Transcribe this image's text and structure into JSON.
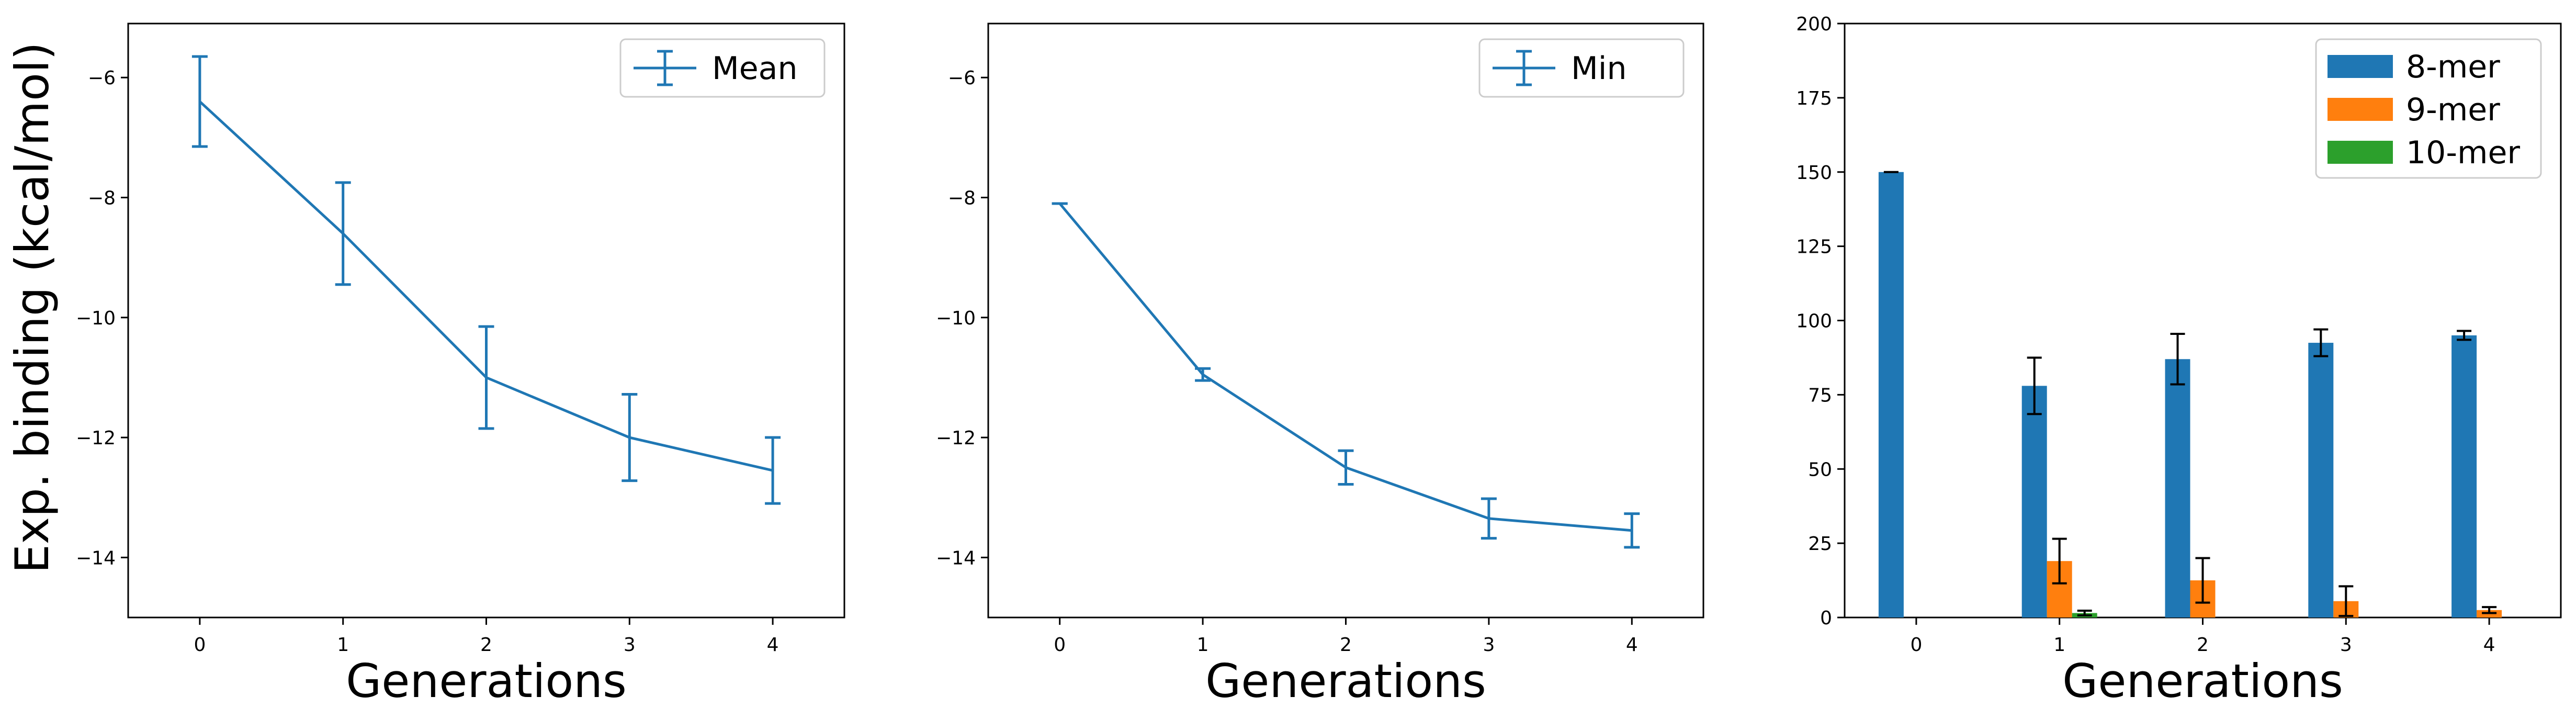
{
  "figure": {
    "ylabel": "Exp. binding (kcal/mol)"
  },
  "colors": {
    "blue": "#1f77b4",
    "orange": "#ff7f0e",
    "green": "#2ca02c",
    "errorbar_black": "#000000"
  },
  "chart_data": [
    {
      "type": "line",
      "panel": "left",
      "x": [
        0,
        1,
        2,
        3,
        4
      ],
      "xticks": [
        "0",
        "1",
        "2",
        "3",
        "4"
      ],
      "xlabel": "Generations",
      "ylabel": "Exp. binding (kcal/mol)",
      "xlim": [
        -0.5,
        4.5
      ],
      "ylim": [
        -15,
        -5.1
      ],
      "yticks": [
        -6,
        -8,
        -10,
        -12,
        -14
      ],
      "yticklabels": [
        "−6",
        "−8",
        "−10",
        "−12",
        "−14"
      ],
      "grid": false,
      "legend_position": "top-right",
      "series": [
        {
          "name": "Mean",
          "color": "#1f77b4",
          "values": [
            -6.4,
            -8.6,
            -11.0,
            -12.0,
            -12.55
          ],
          "errors": [
            0.75,
            0.85,
            0.85,
            0.72,
            0.55
          ]
        }
      ]
    },
    {
      "type": "line",
      "panel": "middle",
      "x": [
        0,
        1,
        2,
        3,
        4
      ],
      "xticks": [
        "0",
        "1",
        "2",
        "3",
        "4"
      ],
      "xlabel": "Generations",
      "ylabel": "",
      "xlim": [
        -0.5,
        4.5
      ],
      "ylim": [
        -15,
        -5.1
      ],
      "yticks": [
        -6,
        -8,
        -10,
        -12,
        -14
      ],
      "yticklabels": [
        "−6",
        "−8",
        "−10",
        "−12",
        "−14"
      ],
      "grid": false,
      "legend_position": "top-right",
      "series": [
        {
          "name": "Min",
          "color": "#1f77b4",
          "values": [
            -8.1,
            -10.95,
            -12.5,
            -13.35,
            -13.55
          ],
          "errors": [
            0.0,
            0.1,
            0.28,
            0.33,
            0.28
          ]
        }
      ]
    },
    {
      "type": "bar",
      "panel": "right",
      "categories": [
        "0",
        "1",
        "2",
        "3",
        "4"
      ],
      "xlabel": "Generations",
      "ylabel": "",
      "ylim": [
        0,
        200
      ],
      "yticks": [
        0,
        25,
        50,
        75,
        100,
        125,
        150,
        175,
        200
      ],
      "yticklabels": [
        "0",
        "25",
        "50",
        "75",
        "100",
        "125",
        "150",
        "175",
        "200"
      ],
      "grid": false,
      "legend_position": "top-right",
      "series": [
        {
          "name": "8-mer",
          "color": "#1f77b4",
          "values": [
            150,
            78,
            87,
            92.5,
            95
          ],
          "errors": [
            0,
            9.5,
            8.5,
            4.5,
            1.5
          ]
        },
        {
          "name": "9-mer",
          "color": "#ff7f0e",
          "values": [
            0,
            19,
            12.5,
            5.5,
            2.5
          ],
          "errors": [
            0,
            7.5,
            7.5,
            5,
            1
          ]
        },
        {
          "name": "10-mer",
          "color": "#2ca02c",
          "values": [
            0,
            1.5,
            0,
            0,
            0
          ],
          "errors": [
            0,
            0.8,
            0,
            0,
            0
          ]
        }
      ]
    }
  ]
}
